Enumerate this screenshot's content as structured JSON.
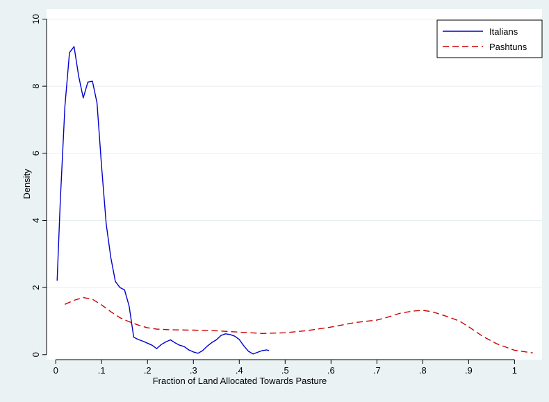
{
  "chart_data": {
    "type": "line",
    "title": "",
    "xlabel": "Fraction of Land Allocated Towards Pasture",
    "ylabel": "Density",
    "xlim": [
      -0.02,
      1.06
    ],
    "ylim": [
      -0.15,
      10.3
    ],
    "x_ticks": [
      0,
      0.1,
      0.2,
      0.3,
      0.4,
      0.5,
      0.6,
      0.7,
      0.8,
      0.9,
      1
    ],
    "x_tick_labels": [
      "0",
      ".1",
      ".2",
      ".3",
      ".4",
      ".5",
      ".6",
      ".7",
      ".8",
      ".9",
      "1"
    ],
    "y_ticks": [
      0,
      2,
      4,
      6,
      8,
      10
    ],
    "y_tick_labels": [
      "0",
      "2",
      "4",
      "6",
      "8",
      "10"
    ],
    "grid": true,
    "legend_position": "top-right",
    "series": [
      {
        "name": "Italians",
        "color": "#0000cc",
        "style": "solid",
        "x": [
          0.003,
          0.01,
          0.02,
          0.03,
          0.04,
          0.05,
          0.06,
          0.07,
          0.08,
          0.09,
          0.1,
          0.11,
          0.12,
          0.13,
          0.14,
          0.15,
          0.16,
          0.17,
          0.18,
          0.19,
          0.2,
          0.21,
          0.22,
          0.23,
          0.24,
          0.25,
          0.26,
          0.27,
          0.28,
          0.29,
          0.3,
          0.31,
          0.32,
          0.33,
          0.34,
          0.35,
          0.36,
          0.37,
          0.38,
          0.39,
          0.4,
          0.41,
          0.42,
          0.43,
          0.44,
          0.45,
          0.46,
          0.465
        ],
        "y": [
          2.2,
          4.6,
          7.4,
          9.0,
          9.18,
          8.3,
          7.65,
          8.12,
          8.15,
          7.5,
          5.6,
          3.9,
          2.9,
          2.18,
          2.0,
          1.93,
          1.45,
          0.52,
          0.45,
          0.4,
          0.34,
          0.28,
          0.18,
          0.3,
          0.38,
          0.44,
          0.35,
          0.28,
          0.24,
          0.14,
          0.08,
          0.04,
          0.12,
          0.25,
          0.36,
          0.44,
          0.57,
          0.62,
          0.6,
          0.55,
          0.45,
          0.26,
          0.1,
          0.02,
          0.07,
          0.12,
          0.14,
          0.12
        ]
      },
      {
        "name": "Pashtuns",
        "color": "#cc0000",
        "style": "dashed",
        "x": [
          0.02,
          0.04,
          0.06,
          0.08,
          0.1,
          0.12,
          0.14,
          0.16,
          0.18,
          0.2,
          0.22,
          0.25,
          0.3,
          0.35,
          0.4,
          0.45,
          0.5,
          0.55,
          0.6,
          0.65,
          0.7,
          0.72,
          0.75,
          0.78,
          0.8,
          0.82,
          0.85,
          0.88,
          0.9,
          0.93,
          0.96,
          1.0,
          1.04
        ],
        "y": [
          1.5,
          1.62,
          1.7,
          1.65,
          1.48,
          1.28,
          1.1,
          0.98,
          0.88,
          0.8,
          0.76,
          0.74,
          0.73,
          0.71,
          0.67,
          0.63,
          0.65,
          0.72,
          0.82,
          0.95,
          1.03,
          1.1,
          1.23,
          1.3,
          1.32,
          1.28,
          1.15,
          1.0,
          0.83,
          0.55,
          0.33,
          0.13,
          0.05
        ]
      }
    ]
  }
}
